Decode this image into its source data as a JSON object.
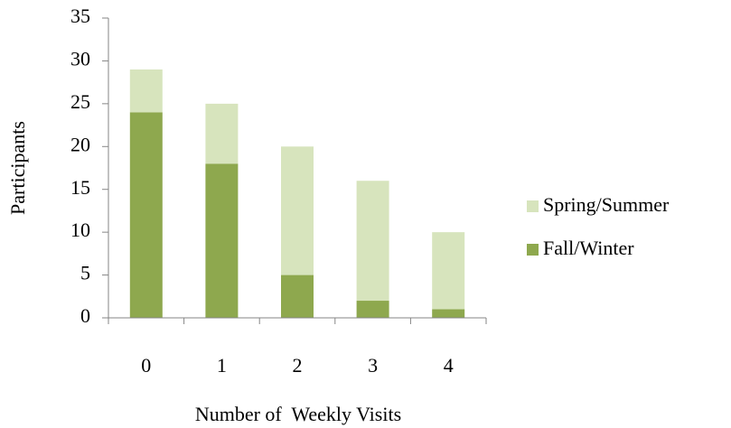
{
  "chart_data": {
    "type": "stacked_bar",
    "x_label": "Number of  Weekly Visits",
    "y_label": "Participants",
    "categories": [
      "0",
      "1",
      "2",
      "3",
      "4"
    ],
    "series": [
      {
        "name": "Fall/Winter",
        "color": "#8ea84e",
        "values": [
          24,
          18,
          5,
          2,
          1
        ]
      },
      {
        "name": "Spring/Summer",
        "color": "#d7e4bd",
        "values": [
          5,
          7,
          15,
          14,
          9
        ]
      }
    ],
    "ylim": [
      0,
      35
    ],
    "yticks": [
      0,
      5,
      10,
      15,
      20,
      25,
      30,
      35
    ],
    "legend": "right"
  }
}
